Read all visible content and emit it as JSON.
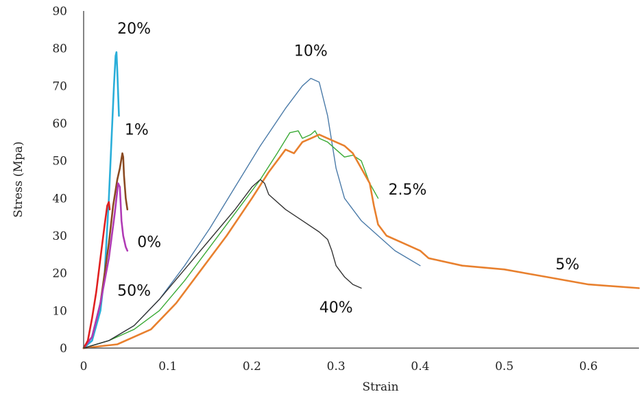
{
  "chart_data": {
    "type": "line",
    "title": "",
    "xlabel": "Strain",
    "ylabel": "Stress (Mpa)",
    "xlim": [
      0,
      0.66
    ],
    "ylim": [
      0,
      90
    ],
    "xticks": [
      "0",
      "0.1",
      "0.2",
      "0.3",
      "0.4",
      "0.5",
      "0.6"
    ],
    "xtick_values": [
      0,
      0.1,
      0.2,
      0.3,
      0.4,
      0.5,
      0.6
    ],
    "yticks": [
      "0",
      "10",
      "20",
      "30",
      "40",
      "50",
      "60",
      "70",
      "80",
      "90"
    ],
    "ytick_values": [
      0,
      10,
      20,
      30,
      40,
      50,
      60,
      70,
      80,
      90
    ],
    "grid": false,
    "legend": "none",
    "series": [
      {
        "name": "20%",
        "color": "#2aaed9",
        "points": [
          [
            0,
            0
          ],
          [
            0.01,
            2
          ],
          [
            0.02,
            10
          ],
          [
            0.025,
            20
          ],
          [
            0.03,
            40
          ],
          [
            0.033,
            55
          ],
          [
            0.036,
            70
          ],
          [
            0.038,
            78
          ],
          [
            0.039,
            79
          ],
          [
            0.04,
            74
          ],
          [
            0.041,
            68
          ],
          [
            0.042,
            62
          ]
        ]
      },
      {
        "name": "1%",
        "color": "#8a4a22",
        "points": [
          [
            0,
            0
          ],
          [
            0.01,
            3
          ],
          [
            0.02,
            12
          ],
          [
            0.03,
            28
          ],
          [
            0.035,
            38
          ],
          [
            0.04,
            45
          ],
          [
            0.043,
            48
          ],
          [
            0.046,
            52
          ],
          [
            0.047,
            51
          ],
          [
            0.048,
            46
          ],
          [
            0.05,
            40
          ],
          [
            0.052,
            37
          ]
        ]
      },
      {
        "name": "0%",
        "color": "#b03ab5",
        "points": [
          [
            0,
            0
          ],
          [
            0.01,
            3
          ],
          [
            0.02,
            12
          ],
          [
            0.03,
            24
          ],
          [
            0.037,
            36
          ],
          [
            0.041,
            44
          ],
          [
            0.043,
            43
          ],
          [
            0.045,
            34
          ],
          [
            0.047,
            30
          ],
          [
            0.05,
            27
          ],
          [
            0.052,
            26
          ]
        ]
      },
      {
        "name": "50%",
        "color": "#e02020",
        "points": [
          [
            0,
            0
          ],
          [
            0.005,
            2
          ],
          [
            0.01,
            8
          ],
          [
            0.015,
            15
          ],
          [
            0.02,
            24
          ],
          [
            0.025,
            33
          ],
          [
            0.028,
            38
          ],
          [
            0.03,
            39
          ],
          [
            0.031,
            37
          ]
        ]
      },
      {
        "name": "10%",
        "color": "#4a7aa8",
        "points": [
          [
            0,
            0
          ],
          [
            0.03,
            2
          ],
          [
            0.06,
            6
          ],
          [
            0.09,
            13
          ],
          [
            0.12,
            22
          ],
          [
            0.15,
            32
          ],
          [
            0.18,
            43
          ],
          [
            0.21,
            54
          ],
          [
            0.24,
            64
          ],
          [
            0.26,
            70
          ],
          [
            0.27,
            72
          ],
          [
            0.28,
            71
          ],
          [
            0.29,
            62
          ],
          [
            0.3,
            48
          ],
          [
            0.31,
            40
          ],
          [
            0.33,
            34
          ],
          [
            0.35,
            30
          ],
          [
            0.37,
            26
          ],
          [
            0.4,
            22
          ]
        ]
      },
      {
        "name": "2.5%",
        "color": "#3aaa35",
        "points": [
          [
            0,
            0
          ],
          [
            0.03,
            2
          ],
          [
            0.06,
            5
          ],
          [
            0.09,
            10
          ],
          [
            0.12,
            18
          ],
          [
            0.15,
            27
          ],
          [
            0.18,
            36
          ],
          [
            0.21,
            45
          ],
          [
            0.23,
            52
          ],
          [
            0.245,
            57.5
          ],
          [
            0.255,
            58
          ],
          [
            0.26,
            56
          ],
          [
            0.27,
            57
          ],
          [
            0.275,
            58
          ],
          [
            0.28,
            56
          ],
          [
            0.29,
            55
          ],
          [
            0.3,
            53
          ],
          [
            0.31,
            51
          ],
          [
            0.32,
            51.5
          ],
          [
            0.33,
            50
          ],
          [
            0.34,
            44
          ],
          [
            0.35,
            40
          ]
        ]
      },
      {
        "name": "5%",
        "color": "#e8802e",
        "points": [
          [
            0,
            0
          ],
          [
            0.04,
            1
          ],
          [
            0.08,
            5
          ],
          [
            0.11,
            12
          ],
          [
            0.14,
            21
          ],
          [
            0.17,
            30
          ],
          [
            0.2,
            40
          ],
          [
            0.22,
            47
          ],
          [
            0.24,
            53
          ],
          [
            0.25,
            52
          ],
          [
            0.26,
            55
          ],
          [
            0.27,
            56
          ],
          [
            0.28,
            57
          ],
          [
            0.29,
            56
          ],
          [
            0.31,
            54
          ],
          [
            0.32,
            52
          ],
          [
            0.33,
            48
          ],
          [
            0.34,
            44
          ],
          [
            0.345,
            38
          ],
          [
            0.35,
            33
          ],
          [
            0.36,
            30
          ],
          [
            0.38,
            28
          ],
          [
            0.4,
            26
          ],
          [
            0.41,
            24
          ],
          [
            0.45,
            22
          ],
          [
            0.5,
            21
          ],
          [
            0.55,
            19
          ],
          [
            0.6,
            17
          ],
          [
            0.66,
            16
          ]
        ]
      },
      {
        "name": "40%",
        "color": "#333333",
        "points": [
          [
            0,
            0
          ],
          [
            0.03,
            2
          ],
          [
            0.06,
            6
          ],
          [
            0.09,
            13
          ],
          [
            0.12,
            21
          ],
          [
            0.15,
            29
          ],
          [
            0.18,
            37
          ],
          [
            0.2,
            43
          ],
          [
            0.21,
            45
          ],
          [
            0.215,
            44
          ],
          [
            0.22,
            41
          ],
          [
            0.24,
            37
          ],
          [
            0.26,
            34
          ],
          [
            0.28,
            31
          ],
          [
            0.29,
            29
          ],
          [
            0.295,
            26
          ],
          [
            0.3,
            22
          ],
          [
            0.31,
            19
          ],
          [
            0.32,
            17
          ],
          [
            0.33,
            16
          ]
        ]
      }
    ],
    "annotations": [
      {
        "text": "20%",
        "x": 0.06,
        "y": 84
      },
      {
        "text": "1%",
        "x": 0.063,
        "y": 57
      },
      {
        "text": "0%",
        "x": 0.078,
        "y": 27
      },
      {
        "text": "50%",
        "x": 0.06,
        "y": 14
      },
      {
        "text": "10%",
        "x": 0.27,
        "y": 78
      },
      {
        "text": "2.5%",
        "x": 0.385,
        "y": 41
      },
      {
        "text": "5%",
        "x": 0.575,
        "y": 21
      },
      {
        "text": "40%",
        "x": 0.3,
        "y": 9.5
      }
    ]
  }
}
